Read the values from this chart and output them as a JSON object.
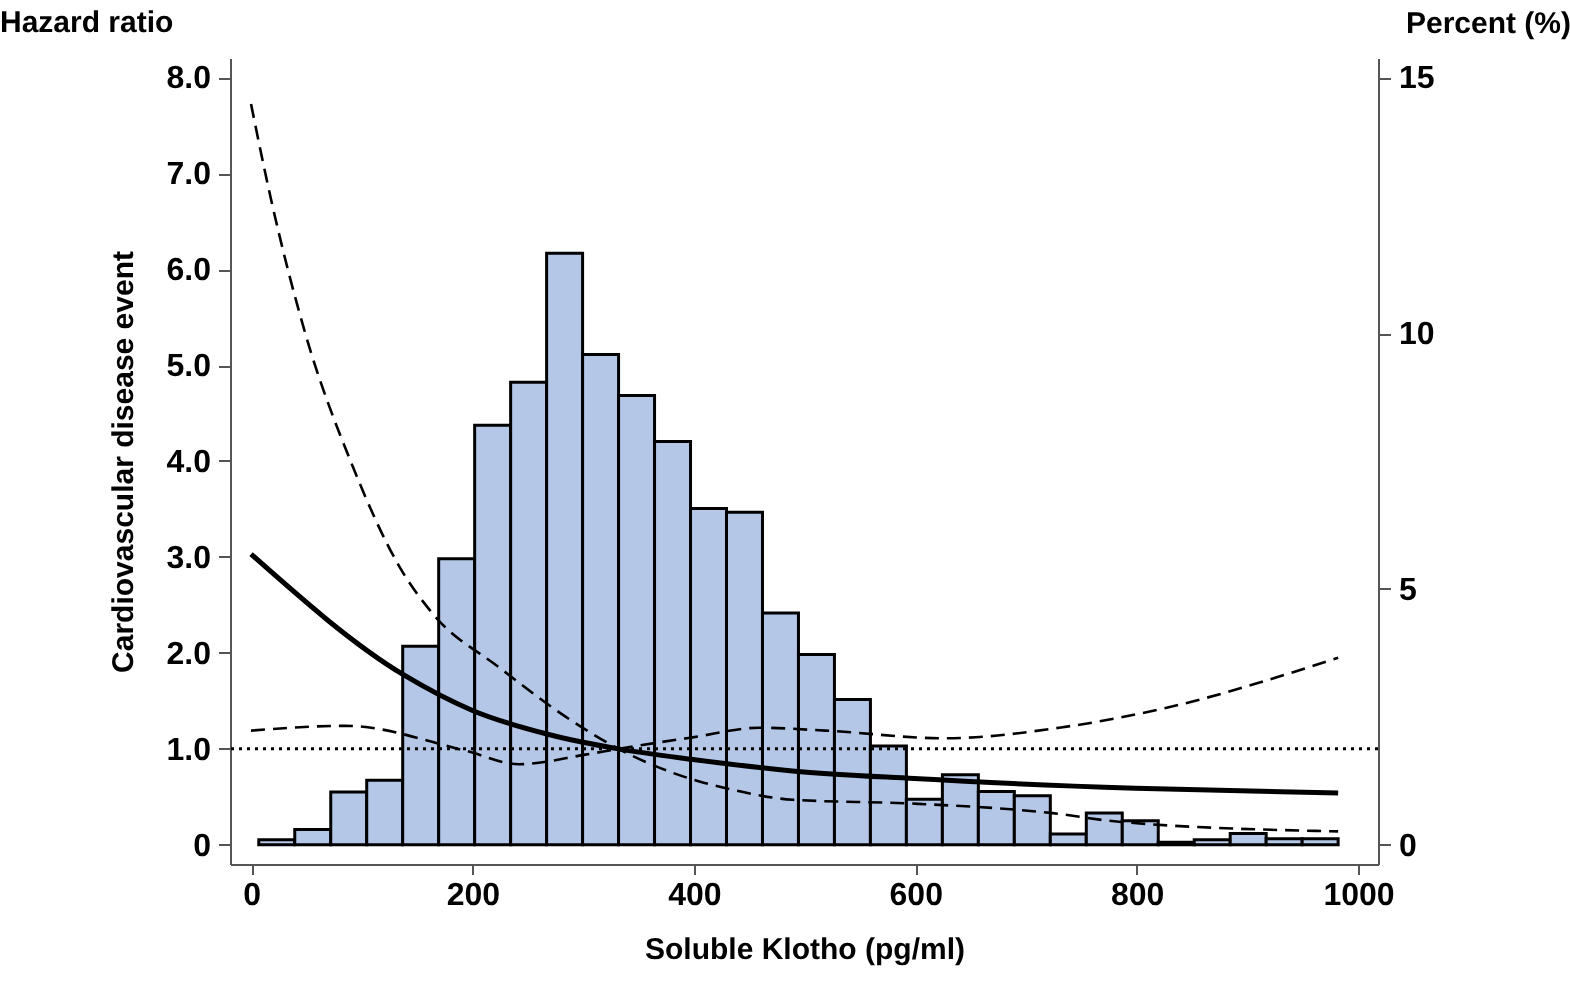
{
  "chart_data": {
    "type": "line",
    "xlabel": "Soluble Klotho (pg/ml)",
    "ylabel": "Cardiovascular disease event",
    "y2label": "Percent (%)",
    "annotations": [
      "Hazard ratio"
    ],
    "xlim": [
      -19,
      1018
    ],
    "xticks": [
      0,
      200,
      400,
      600,
      800,
      1000
    ],
    "ylim": [
      -0.2,
      8.2
    ],
    "yticks": [
      0,
      {
        "value": 1,
        "label": "1.0"
      },
      {
        "value": 2,
        "label": "2.0"
      },
      {
        "value": 3,
        "label": "3.0"
      },
      {
        "value": 4,
        "label": "4.0"
      },
      {
        "value": 5,
        "label": "5.0"
      },
      {
        "value": 6,
        "label": "6.0"
      },
      {
        "value": 7,
        "label": "7.0"
      },
      {
        "value": 8,
        "label": "8.0"
      }
    ],
    "y2lim": [
      -0.375,
      15.375
    ],
    "y2ticks": [
      0,
      5,
      10,
      15
    ],
    "grid": false,
    "marker": "none",
    "ref_lines": [
      {
        "axis": "y",
        "value": 1,
        "line_style": "dotted",
        "color": "#000000"
      }
    ],
    "series": [
      {
        "type": "histogram",
        "axis": "y2",
        "color": "#b4c7e7",
        "bins": [
          7,
          39.5,
          72,
          104.5,
          137,
          169.5,
          202,
          234.5,
          267,
          299.5,
          332,
          364.5,
          397,
          429.5,
          462,
          494.5,
          527,
          559.5,
          592,
          624.5,
          657,
          689.5,
          722,
          754.5,
          787,
          819.5,
          852,
          884.5,
          917,
          949.5,
          982
        ],
        "values": [
          0.1,
          0.3,
          1.03,
          1.26,
          3.88,
          5.59,
          8.2,
          9.04,
          11.56,
          9.58,
          8.78,
          7.88,
          6.57,
          6.5,
          4.53,
          3.72,
          2.84,
          1.93,
          0.89,
          1.37,
          1.04,
          0.96,
          0.21,
          0.62,
          0.47,
          0.05,
          0.1,
          0.22,
          0.12,
          0.12
        ]
      },
      {
        "color": "#000000",
        "line_style": "solid",
        "x": [
          0,
          138,
          200,
          269,
          332,
          399,
          489,
          599,
          799,
          982
        ],
        "values": [
          3.03,
          1.77,
          1.4,
          1.15,
          1.0,
          0.89,
          0.77,
          0.69,
          0.59,
          0.54
        ]
      },
      {
        "color": "#000000",
        "line_style": "dashed",
        "x": [
          0,
          18,
          49,
          92,
          134,
          164,
          224,
          290,
          332,
          405,
          429,
          489,
          597,
          724,
          784,
          982
        ],
        "values": [
          7.72,
          6.73,
          5.33,
          3.94,
          2.9,
          2.41,
          1.85,
          1.29,
          1.0,
          0.66,
          0.59,
          0.47,
          0.43,
          0.33,
          0.24,
          0.14
        ]
      },
      {
        "color": "#000000",
        "line_style": "dashed",
        "x": [
          0,
          85,
          194,
          242,
          302,
          332,
          399,
          459,
          519,
          627,
          730,
          820,
          982
        ],
        "values": [
          1.19,
          1.24,
          0.98,
          0.84,
          0.94,
          1.0,
          1.12,
          1.22,
          1.19,
          1.11,
          1.22,
          1.41,
          1.95
        ]
      }
    ]
  }
}
